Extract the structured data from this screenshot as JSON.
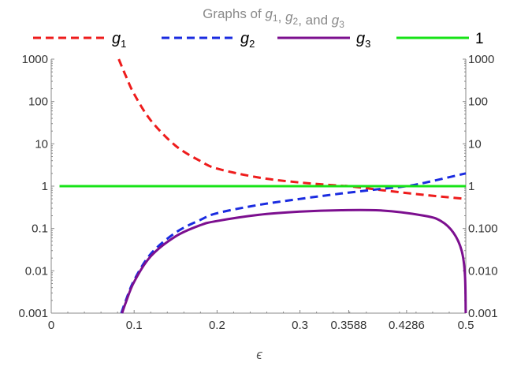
{
  "chart_data": {
    "type": "line",
    "title": {
      "prefix": "Graphs of ",
      "parts": [
        "g",
        "1",
        ", ",
        "g",
        "2",
        ", and ",
        "g",
        "3"
      ]
    },
    "xlabel": "ϵ",
    "xlim": [
      0,
      0.5
    ],
    "ylim": [
      0.001,
      1000
    ],
    "yscale": "log",
    "x_ticks": [
      {
        "value": 0,
        "label": "0"
      },
      {
        "value": 0.1,
        "label": "0.1"
      },
      {
        "value": 0.2,
        "label": "0.2"
      },
      {
        "value": 0.3,
        "label": "0.3"
      },
      {
        "value": 0.3588,
        "label": "0.3588"
      },
      {
        "value": 0.4286,
        "label": "0.4286"
      },
      {
        "value": 0.5,
        "label": "0.5"
      }
    ],
    "y_ticks_left": [
      {
        "value": 0.001,
        "label": "0.001"
      },
      {
        "value": 0.01,
        "label": "0.01"
      },
      {
        "value": 0.1,
        "label": "0.1"
      },
      {
        "value": 1,
        "label": "1"
      },
      {
        "value": 10,
        "label": "10"
      },
      {
        "value": 100,
        "label": "100"
      },
      {
        "value": 1000,
        "label": "1000"
      }
    ],
    "y_ticks_right": [
      {
        "value": 0.001,
        "label": "0.001"
      },
      {
        "value": 0.01,
        "label": "0.010"
      },
      {
        "value": 0.1,
        "label": "0.100"
      },
      {
        "value": 1,
        "label": "1"
      },
      {
        "value": 10,
        "label": "10"
      },
      {
        "value": 100,
        "label": "100"
      },
      {
        "value": 1000,
        "label": "1000"
      }
    ],
    "legend_position": "top",
    "series": [
      {
        "name": "g1",
        "base": "g",
        "sub": "1",
        "color": "#ee1c1c",
        "dash": "dashed",
        "x": [
          0.0815,
          0.09,
          0.1,
          0.12,
          0.15,
          0.18,
          0.2,
          0.25,
          0.3,
          0.35,
          0.3588,
          0.4,
          0.45,
          0.5
        ],
        "values": [
          1000,
          400,
          150,
          36,
          9,
          3.9,
          2.6,
          1.6,
          1.22,
          1.02,
          1.0,
          0.8,
          0.62,
          0.5
        ]
      },
      {
        "name": "g2",
        "base": "g",
        "sub": "2",
        "color": "#1a2be0",
        "dash": "dashed",
        "x": [
          0.0845,
          0.09,
          0.1,
          0.12,
          0.15,
          0.18,
          0.2,
          0.25,
          0.3,
          0.35,
          0.4,
          0.4286,
          0.45,
          0.5
        ],
        "values": [
          0.001,
          0.002,
          0.006,
          0.025,
          0.08,
          0.16,
          0.23,
          0.36,
          0.5,
          0.67,
          0.87,
          1.0,
          1.2,
          2.0
        ]
      },
      {
        "name": "g3",
        "base": "g",
        "sub": "3",
        "color": "#7c0f8f",
        "dash": "solid",
        "x": [
          0.0855,
          0.09,
          0.1,
          0.12,
          0.15,
          0.18,
          0.2,
          0.25,
          0.3,
          0.35,
          0.4,
          0.45,
          0.47,
          0.485,
          0.495,
          0.499,
          0.4999
        ],
        "values": [
          0.001,
          0.0018,
          0.0055,
          0.022,
          0.065,
          0.12,
          0.15,
          0.21,
          0.25,
          0.27,
          0.265,
          0.2,
          0.15,
          0.08,
          0.03,
          0.008,
          0.001
        ]
      },
      {
        "name": "1",
        "base": "1",
        "sub": "",
        "color": "#17e317",
        "dash": "solid",
        "x": [
          0.01,
          0.5
        ],
        "values": [
          1,
          1
        ]
      }
    ]
  }
}
